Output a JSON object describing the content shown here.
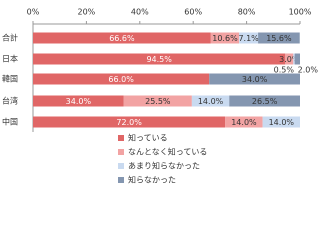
{
  "chart_data": {
    "type": "stacked-bar-horizontal",
    "categories": [
      "合計",
      "日本",
      "韓国",
      "台湾",
      "中国"
    ],
    "series": [
      {
        "name": "知っている",
        "color": "#e06666",
        "values": [
          66.6,
          94.5,
          66.0,
          34.0,
          72.0
        ],
        "value_labels": [
          "66.6%",
          "94.5%",
          "66.0%",
          "34.0%",
          "72.0%"
        ]
      },
      {
        "name": "なんとなく知っている",
        "color": "#f2a3a3",
        "values": [
          10.6,
          3.0,
          null,
          25.5,
          14.0
        ],
        "value_labels": [
          "10.6%",
          "3.0%",
          null,
          "25.5%",
          "14.0%"
        ]
      },
      {
        "name": "あまり知らなかった",
        "color": "#c9daf0",
        "values": [
          7.1,
          0.5,
          null,
          14.0,
          14.0
        ],
        "value_labels": [
          "7.1%",
          "0.5%",
          null,
          "14.0%",
          "14.0%"
        ]
      },
      {
        "name": "知らなかった",
        "color": "#8496b0",
        "values": [
          15.6,
          2.0,
          34.0,
          26.5,
          null
        ],
        "value_labels": [
          "15.6%",
          "2.0%",
          "34.0%",
          "26.5%",
          null
        ]
      }
    ],
    "xlim": [
      0,
      100
    ],
    "xticks": [
      {
        "value": 0,
        "label": "0%"
      },
      {
        "value": 20,
        "label": "20%"
      },
      {
        "value": 40,
        "label": "40%"
      },
      {
        "value": 60,
        "label": "60%"
      },
      {
        "value": 80,
        "label": "80%"
      },
      {
        "value": 100,
        "label": "100%"
      }
    ],
    "legend": "bottom"
  }
}
